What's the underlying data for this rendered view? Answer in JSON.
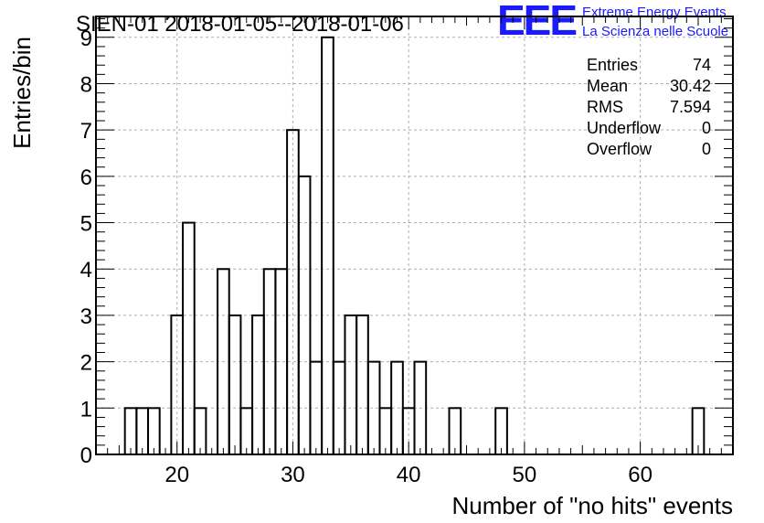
{
  "chart_data": {
    "type": "bar",
    "title": "SIEN-01 2018-01-05--2018-01-06",
    "xlabel": "Number of \"no hits\" events",
    "ylabel": "Entries/bin",
    "xlim": [
      13,
      68
    ],
    "ylim": [
      0,
      9.45
    ],
    "x_ticks": [
      20,
      30,
      40,
      50,
      60
    ],
    "y_ticks": [
      0,
      1,
      2,
      3,
      4,
      5,
      6,
      7,
      8,
      9
    ],
    "grid": true,
    "bin_width": 1,
    "bins": [
      {
        "x": 16,
        "value": 1
      },
      {
        "x": 17,
        "value": 1
      },
      {
        "x": 18,
        "value": 1
      },
      {
        "x": 20,
        "value": 3
      },
      {
        "x": 21,
        "value": 5
      },
      {
        "x": 22,
        "value": 1
      },
      {
        "x": 24,
        "value": 4
      },
      {
        "x": 25,
        "value": 3
      },
      {
        "x": 26,
        "value": 1
      },
      {
        "x": 27,
        "value": 3
      },
      {
        "x": 28,
        "value": 4
      },
      {
        "x": 29,
        "value": 4
      },
      {
        "x": 30,
        "value": 7
      },
      {
        "x": 31,
        "value": 6
      },
      {
        "x": 32,
        "value": 2
      },
      {
        "x": 33,
        "value": 9
      },
      {
        "x": 34,
        "value": 2
      },
      {
        "x": 35,
        "value": 3
      },
      {
        "x": 36,
        "value": 3
      },
      {
        "x": 37,
        "value": 2
      },
      {
        "x": 38,
        "value": 1
      },
      {
        "x": 39,
        "value": 2
      },
      {
        "x": 40,
        "value": 1
      },
      {
        "x": 41,
        "value": 2
      },
      {
        "x": 44,
        "value": 1
      },
      {
        "x": 48,
        "value": 1
      },
      {
        "x": 65,
        "value": 1
      }
    ],
    "stats": [
      {
        "label": "Entries",
        "value": "74"
      },
      {
        "label": "Mean",
        "value": "30.42"
      },
      {
        "label": "RMS",
        "value": "7.594"
      },
      {
        "label": "Underflow",
        "value": "0"
      },
      {
        "label": "Overflow",
        "value": "0"
      }
    ]
  },
  "logo": {
    "mark": "EEE",
    "line1": "Extreme Energy Events",
    "line2": "La Scienza nelle Scuole",
    "color": "#1a1aff"
  }
}
